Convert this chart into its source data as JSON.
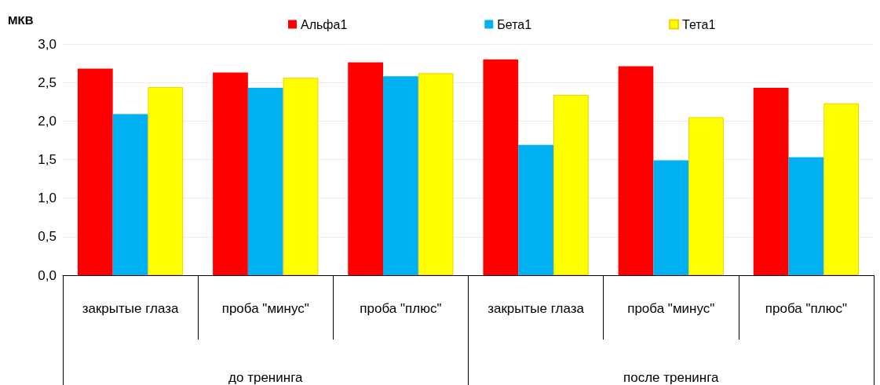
{
  "chart_data": {
    "type": "bar",
    "ylabel": "МКВ",
    "categories": [
      "закрытые глаза",
      "проба \"минус\"",
      "проба \"плюс\"",
      "закрытые глаза",
      "проба \"минус\"",
      "проба \"плюс\""
    ],
    "series": [
      {
        "name": "Альфа1",
        "color": "#ff0000",
        "values": [
          2.68,
          2.63,
          2.76,
          2.8,
          2.71,
          2.43
        ]
      },
      {
        "name": "Бета1",
        "color": "#00b0f0",
        "values": [
          2.09,
          2.43,
          2.58,
          1.69,
          1.49,
          1.53
        ]
      },
      {
        "name": "Тета1",
        "color": "#ffff00",
        "values": [
          2.44,
          2.56,
          2.62,
          2.34,
          2.05,
          2.23
        ]
      }
    ],
    "ylim": [
      0,
      3
    ],
    "yticks": [
      {
        "value": 0,
        "label": "0,0"
      },
      {
        "value": 0.5,
        "label": "0,5"
      },
      {
        "value": 1,
        "label": "1,0"
      },
      {
        "value": 1.5,
        "label": "1,5"
      },
      {
        "value": 2,
        "label": "2,0"
      },
      {
        "value": 2.5,
        "label": "2,5"
      },
      {
        "value": 3,
        "label": "3,0"
      }
    ],
    "grid": "y",
    "legend": "top",
    "annotations": [
      "до тренинга",
      "после тренинга"
    ]
  }
}
